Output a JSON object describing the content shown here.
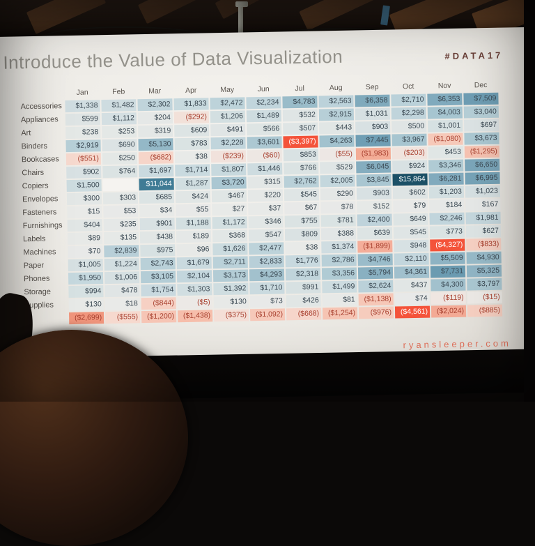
{
  "slide": {
    "title": "Introduce the Value of Data Visualization",
    "hashtag": "#DATA17",
    "footer": "ryansleeper.com",
    "title_color": "#95938c",
    "hashtag_color": "#6b4139",
    "footer_color": "#e0705a"
  },
  "chart_data": {
    "type": "heatmap",
    "title": "Introduce the Value of Data Visualization",
    "value_format": "USD, negatives shown in parentheses",
    "legend_position": "none",
    "color_scale": {
      "positive_max": 15864,
      "negative_min": -4561,
      "positive_dark": "#1c5066",
      "positive_light": "#dde4e4",
      "negative_light": "#f6dcd2",
      "negative_highlight": "#f4533a",
      "neutral": "#e9eae8"
    },
    "columns": [
      "Jan",
      "Feb",
      "Mar",
      "Apr",
      "May",
      "Jun",
      "Jul",
      "Aug",
      "Sep",
      "Oct",
      "Nov",
      "Dec"
    ],
    "rows": [
      {
        "label": "Accessories",
        "values": [
          1338,
          1482,
          2302,
          1833,
          2472,
          2234,
          4783,
          2563,
          6358,
          2710,
          6353,
          7509
        ]
      },
      {
        "label": "Appliances",
        "values": [
          599,
          1112,
          204,
          -292,
          1206,
          1489,
          532,
          2915,
          1031,
          2298,
          4003,
          3040
        ]
      },
      {
        "label": "Art",
        "values": [
          238,
          253,
          319,
          609,
          491,
          566,
          507,
          443,
          903,
          500,
          1001,
          697
        ]
      },
      {
        "label": "Binders",
        "values": [
          2919,
          690,
          5130,
          783,
          2228,
          3601,
          -3397,
          4263,
          7445,
          3967,
          -1080,
          3673
        ]
      },
      {
        "label": "Bookcases",
        "values": [
          -551,
          250,
          -682,
          38,
          -239,
          -60,
          853,
          -55,
          -1983,
          -203,
          453,
          -1295
        ]
      },
      {
        "label": "Chairs",
        "values": [
          902,
          764,
          1697,
          1714,
          1807,
          1446,
          766,
          529,
          6045,
          924,
          3346,
          6650
        ]
      },
      {
        "label": "Copiers",
        "values": [
          1500,
          null,
          11044,
          1287,
          3720,
          315,
          2762,
          2005,
          3845,
          15864,
          6281,
          6995
        ]
      },
      {
        "label": "Envelopes",
        "values": [
          300,
          303,
          685,
          424,
          467,
          220,
          545,
          290,
          903,
          602,
          1203,
          1023
        ]
      },
      {
        "label": "Fasteners",
        "values": [
          15,
          53,
          34,
          55,
          27,
          37,
          67,
          78,
          152,
          79,
          184,
          167
        ]
      },
      {
        "label": "Furnishings",
        "values": [
          404,
          235,
          901,
          1188,
          1172,
          346,
          755,
          781,
          2400,
          649,
          2246,
          1981
        ]
      },
      {
        "label": "Labels",
        "values": [
          89,
          135,
          438,
          189,
          368,
          547,
          809,
          388,
          639,
          545,
          773,
          627
        ]
      },
      {
        "label": "Machines",
        "values": [
          70,
          2839,
          975,
          96,
          1626,
          2477,
          38,
          1374,
          -1899,
          948,
          -4327,
          -833
        ]
      },
      {
        "label": "Paper",
        "values": [
          1005,
          1224,
          2743,
          1679,
          2711,
          2833,
          1776,
          2786,
          4746,
          2110,
          5509,
          4930
        ]
      },
      {
        "label": "Phones",
        "values": [
          1950,
          1006,
          3105,
          2104,
          3173,
          4293,
          2318,
          3356,
          5794,
          4361,
          7731,
          5325
        ]
      },
      {
        "label": "Storage",
        "values": [
          994,
          478,
          1754,
          1303,
          1392,
          1710,
          991,
          1499,
          2624,
          437,
          4300,
          3797
        ]
      },
      {
        "label": "Supplies",
        "values": [
          130,
          18,
          -844,
          -5,
          130,
          73,
          426,
          81,
          -1138,
          74,
          -119,
          -15
        ]
      },
      {
        "label": "",
        "values": [
          -2699,
          -555,
          -1200,
          -1438,
          -375,
          -1092,
          -668,
          -1254,
          -976,
          -4561,
          -2024,
          -885
        ]
      }
    ]
  }
}
